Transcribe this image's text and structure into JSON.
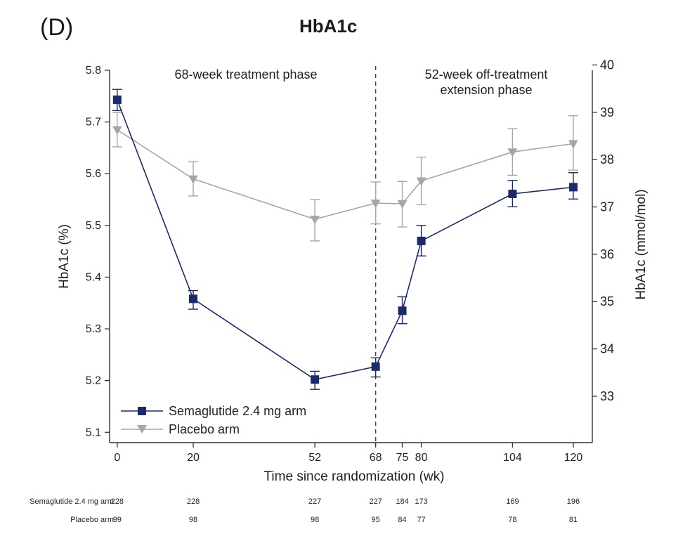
{
  "panel_label": "(D)",
  "chart_data": {
    "type": "line",
    "title": "HbA1c",
    "xlabel": "Time since randomization (wk)",
    "ylabel": "HbA1c (%)",
    "y2label": "HbA1c (mmol/mol)",
    "x_ticks": [
      0,
      20,
      52,
      68,
      75,
      80,
      104,
      120
    ],
    "xlim": [
      -2,
      125
    ],
    "ylim": [
      5.08,
      5.8
    ],
    "y_ticks": [
      5.1,
      5.2,
      5.3,
      5.4,
      5.5,
      5.6,
      5.7,
      5.8
    ],
    "y_tick_labels": [
      "5.1",
      "5.2",
      "5.3",
      "5.4",
      "5.5",
      "5.6",
      "5.7",
      "5.8"
    ],
    "y2_ticks": [
      33,
      34,
      35,
      36,
      37,
      38,
      39,
      40
    ],
    "y2_tick_labels": [
      "33",
      "34",
      "35",
      "36",
      "37",
      "38",
      "39",
      "40"
    ],
    "y2_conversion": {
      "slope": 10.929,
      "intercept": -23.5
    },
    "vline_x": 68,
    "phases": {
      "treatment": "68-week treatment phase",
      "extension_line1": "52-week off-treatment",
      "extension_line2": "extension phase"
    },
    "legend_position": "bottom-left",
    "series": [
      {
        "name": "Semaglutide 2.4 mg arm",
        "marker": "square",
        "color": "#1b2a6b",
        "x": [
          0,
          20,
          52,
          68,
          75,
          80,
          104,
          120
        ],
        "y": [
          5.743,
          5.358,
          5.202,
          5.227,
          5.335,
          5.47,
          5.561,
          5.574
        ],
        "err_low": [
          5.722,
          5.338,
          5.183,
          5.207,
          5.31,
          5.441,
          5.536,
          5.551
        ],
        "err_high": [
          5.763,
          5.374,
          5.218,
          5.244,
          5.362,
          5.5,
          5.587,
          5.602
        ],
        "n_at_risk": [
          "228",
          "228",
          "227",
          "227",
          "184",
          "173",
          "169",
          "196"
        ]
      },
      {
        "name": "Placebo arm",
        "marker": "triangle-down",
        "color": "#a8a6a2",
        "x": [
          0,
          20,
          52,
          68,
          75,
          80,
          104,
          120
        ],
        "y": [
          5.685,
          5.59,
          5.512,
          5.543,
          5.542,
          5.586,
          5.642,
          5.658
        ],
        "err_low": [
          5.652,
          5.557,
          5.47,
          5.503,
          5.497,
          5.54,
          5.597,
          5.607
        ],
        "err_high": [
          5.718,
          5.623,
          5.55,
          5.584,
          5.585,
          5.632,
          5.687,
          5.712
        ],
        "n_at_risk": [
          "99",
          "98",
          "98",
          "95",
          "84",
          "77",
          "78",
          "81"
        ]
      }
    ]
  }
}
